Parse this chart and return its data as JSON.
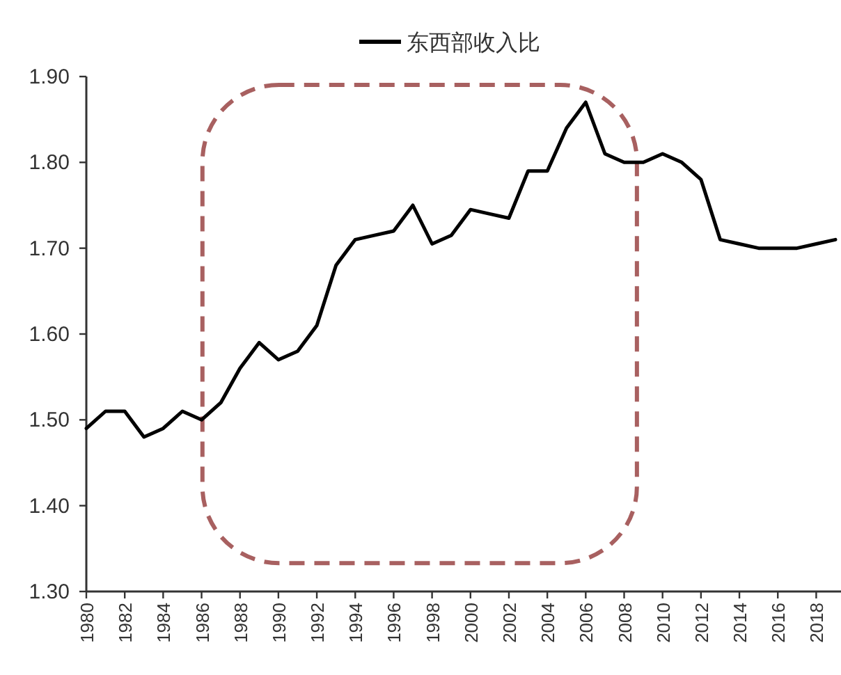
{
  "chart_data": {
    "type": "line",
    "categories": [
      "1980",
      null,
      "1982",
      null,
      "1984",
      null,
      "1986",
      null,
      "1988",
      null,
      "1990",
      null,
      "1992",
      null,
      "1994",
      null,
      "1996",
      null,
      "1998",
      null,
      "2000",
      null,
      "2002",
      null,
      "2004",
      null,
      "2006",
      null,
      "2008",
      null,
      "2010",
      null,
      "2012",
      null,
      "2014",
      null,
      "2016",
      null,
      "2018",
      null
    ],
    "series": [
      {
        "name": "东西部收入比",
        "color": "#000000",
        "values": [
          1.49,
          1.51,
          1.51,
          1.48,
          1.49,
          1.51,
          1.5,
          1.52,
          1.56,
          1.59,
          1.57,
          1.58,
          1.61,
          1.68,
          1.71,
          1.715,
          1.72,
          1.75,
          1.705,
          1.715,
          1.745,
          1.74,
          1.735,
          1.79,
          1.79,
          1.84,
          1.87,
          1.81,
          1.8,
          1.8,
          1.81,
          1.8,
          1.78,
          1.71,
          1.705,
          1.7,
          1.7,
          1.7,
          1.705,
          1.71
        ]
      }
    ],
    "ylim": [
      1.3,
      1.9
    ],
    "yticks": [
      {
        "value": 1.3,
        "label": "1.30"
      },
      {
        "value": 1.4,
        "label": "1.40"
      },
      {
        "value": 1.5,
        "label": "1.50"
      },
      {
        "value": 1.6,
        "label": "1.60"
      },
      {
        "value": 1.7,
        "label": "1.70"
      },
      {
        "value": 1.8,
        "label": "1.80"
      },
      {
        "value": 1.9,
        "label": "1.90"
      }
    ],
    "legend": "top",
    "grid": false,
    "marker": "none",
    "line_style": "solid"
  }
}
